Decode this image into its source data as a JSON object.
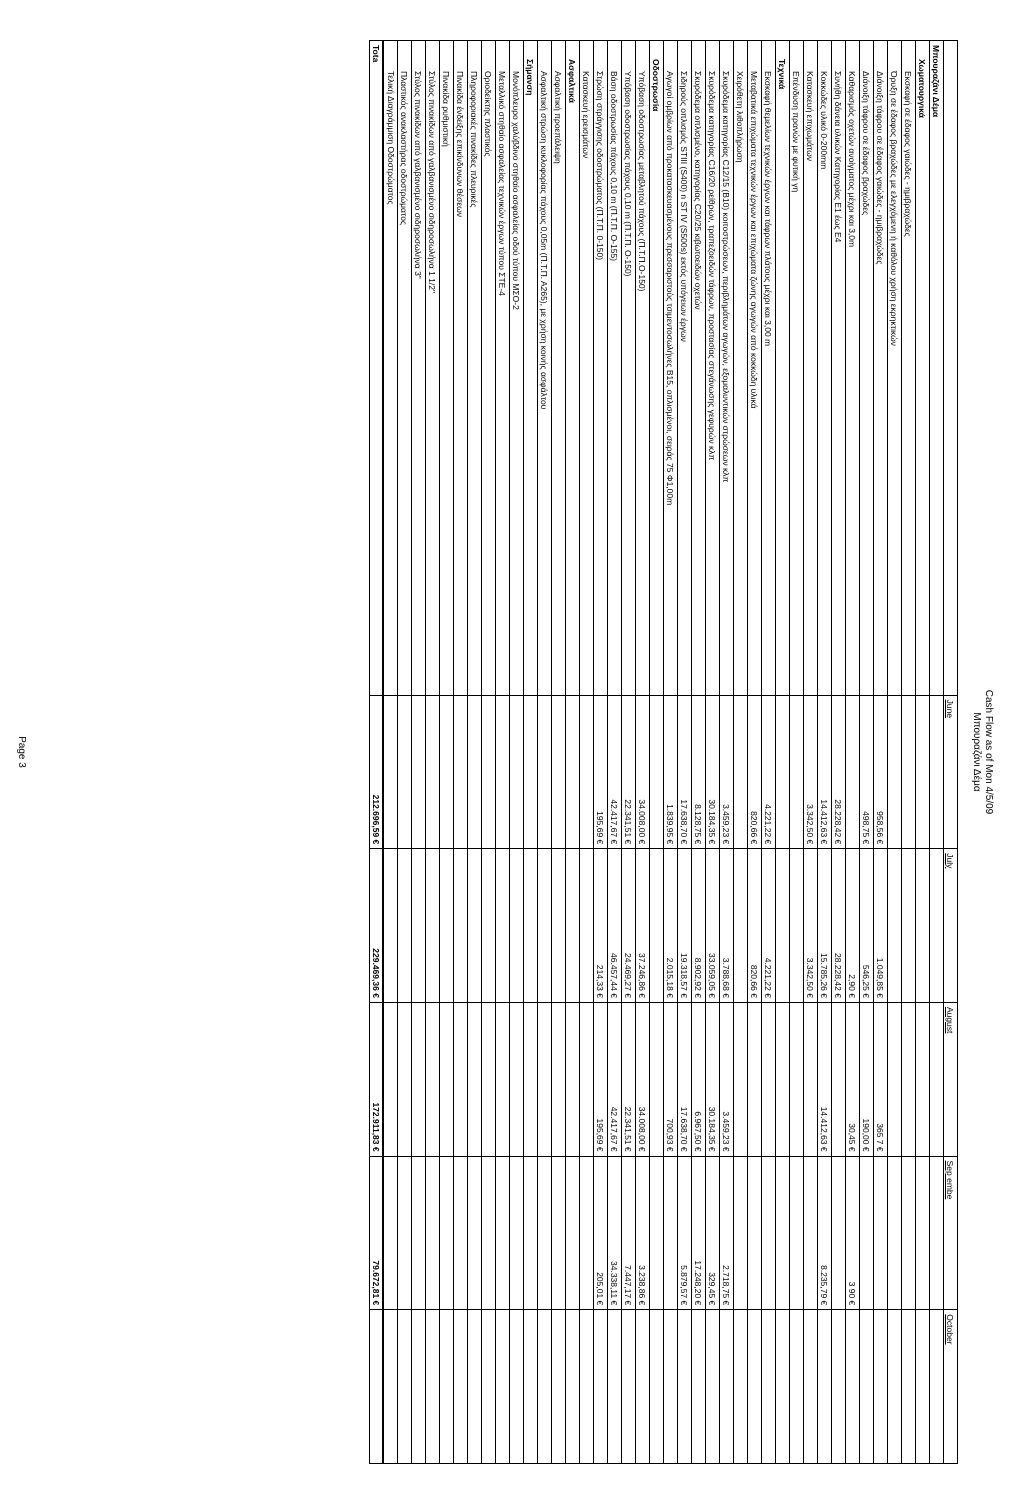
{
  "header": {
    "line1": "Cash Flow as of Mon 4/5/09",
    "line2": "Μπουραζάνι Δέμα"
  },
  "columns": [
    "June",
    "July",
    "August",
    "Sep embe",
    "October"
  ],
  "page_label": "Page 3",
  "total_label": "Tota",
  "totals": [
    "212.696,59 €",
    "229.469,36 €",
    "172.911,83 €",
    "79.672,81 €",
    ""
  ],
  "rows": [
    {
      "lvl": 0,
      "desc": "Μπουραζάνι Δέμα",
      "vals": [
        "",
        "",
        "",
        "",
        ""
      ]
    },
    {
      "lvl": 1,
      "desc": "Χωματουργικά",
      "vals": [
        "",
        "",
        "",
        "",
        ""
      ]
    },
    {
      "lvl": 2,
      "desc": "Εκσκαφή σε έδαφος γαιώδες - ημιβραχώδες",
      "vals": [
        "",
        "",
        "",
        "",
        ""
      ]
    },
    {
      "lvl": 2,
      "desc": "Όρυξη σε έδαφος βραχώδες με ελεγχόμενη ή καθόλου χρήση εκρηκτικών",
      "vals": [
        "",
        "",
        "",
        "",
        ""
      ]
    },
    {
      "lvl": 2,
      "desc": "Διάνοιξη τάφρου σε έδαφος γαιώδες - ημιβραχώδες",
      "vals": [
        "958,56 €",
        "1.049,85 €",
        "365  7 €",
        "",
        ""
      ]
    },
    {
      "lvl": 2,
      "desc": "Διάνοιξη τάφρου σε έδαφος βραχώδες",
      "vals": [
        "498,75 €",
        "546,25 €",
        "190,00 €",
        "",
        ""
      ]
    },
    {
      "lvl": 2,
      "desc": "Καθαρισμός οχετών ανοίγματος  μέχρι και 3,0m",
      "vals": [
        "",
        "2,90 €",
        "30,45 €",
        "3  90 €",
        ""
      ]
    },
    {
      "lvl": 2,
      "desc": "Συνήθη δάνεια υλικών  Κατηγορίας Ε1 έως Ε4",
      "vals": [
        "28.228,42 €",
        "28.228,42 €",
        "",
        "",
        ""
      ]
    },
    {
      "lvl": 2,
      "desc": "Κοκκώδες υλικό 0-200mm",
      "vals": [
        "14.412,63 €",
        "15.785,26 €",
        "14.412,63 €",
        "8.235,79 €",
        ""
      ]
    },
    {
      "lvl": 2,
      "desc": "Κατασκευή  επιχωμάτων",
      "vals": [
        "3.342,50 €",
        "3.342,50 €",
        "",
        "",
        ""
      ]
    },
    {
      "lvl": 2,
      "desc": "Επένδυση πρανών με φυτική γη",
      "vals": [
        "",
        "",
        "",
        "",
        ""
      ]
    },
    {
      "lvl": 1,
      "desc": "Τεχνικά",
      "vals": [
        "",
        "",
        "",
        "",
        ""
      ]
    },
    {
      "lvl": 2,
      "desc": "Εκσκαφή θεμελίων τεχνικών έργων και τάφρων πλάτους μέχρι και 3,00 m",
      "vals": [
        "4.221,22 €",
        "4.221,22 €",
        "",
        "",
        ""
      ]
    },
    {
      "lvl": 2,
      "desc": "Μεταβατικά επιχώματα τεχνικών έργων και επιχώματα ζώνης αγωγών από κοκκώδη υλικά",
      "vals": [
        "820,66 €",
        "820,66 €",
        "",
        "",
        ""
      ]
    },
    {
      "lvl": 2,
      "desc": "Χειρόθετη λιθοπλήρωση",
      "vals": [
        "",
        "",
        "",
        "",
        ""
      ]
    },
    {
      "lvl": 2,
      "desc": "Σκυρόδεμα κατηγορίας C12/15 (Β10) κοιτοστρώσεων, περιβλημάτων αγωγών, εξομαλυντικών στρώσεων κλπ",
      "vals": [
        "3.459,23 €",
        "3.788,68 €",
        "3.459,23 €",
        "2.718,75 €",
        ""
      ]
    },
    {
      "lvl": 2,
      "desc": "Σκυρόδεμα κατηγορίας C16/20 ρείθρων, τραπεζοειδών τάφρων, προστασίας στεγάνωσης γεφυρών κλπ",
      "vals": [
        "30.184,35 €",
        "33.059,05 €",
        "30.184,35 €",
        "329,45 €",
        ""
      ]
    },
    {
      "lvl": 2,
      "desc": "Σκυρόδεμα οπλισμένο, κατηγορίας C20/25 κιβωτοειδών οχετών",
      "vals": [
        "8.128,75 €",
        "8.902,92 €",
        "6.967,50 €",
        "17.248,20 €",
        ""
      ]
    },
    {
      "lvl": 2,
      "desc": "Σιδηρούς οπλισμός STIII (S400) n ST IV (S500s) εκτός υπόγειων έργων",
      "vals": [
        "17.638,70 €",
        "19.318,57 €",
        "17.638,70 €",
        "5.879,57 €",
        ""
      ]
    },
    {
      "lvl": 2,
      "desc": "Αγωγοί ομβρίων από προκατασκευασμένους πρεσσαριστούς τσιμεντοσωλήνες Β15, οπλισμένοι, σειράς 75 Φ1,00m",
      "vals": [
        "1.839,95 €",
        "2.015,18 €",
        "700,93 €",
        "",
        ""
      ]
    },
    {
      "lvl": 1,
      "desc": "Οδοστρωσία",
      "vals": [
        "",
        "",
        "",
        "",
        ""
      ]
    },
    {
      "lvl": 2,
      "desc": "Υπόβαση οδοστρωσίας μεταβλητού πάχους (Π.Τ.Π.Ο-150)",
      "vals": [
        "34.008,00 €",
        "37.246,86 €",
        "34.008,00 €",
        "3.238,86 €",
        ""
      ]
    },
    {
      "lvl": 2,
      "desc": "Υπόβαση οδοστρωσίας πάχους 0,10 m (Π.Τ.Π. Ο-150)",
      "vals": [
        "22.341,51 €",
        "24.469,27 €",
        "22.341,51 €",
        "7.447,17 €",
        ""
      ]
    },
    {
      "lvl": 2,
      "desc": "Βάση οδοστρωσίας πάχους 0,10 m (Π.Τ.Π. Ο-155)",
      "vals": [
        "42.417,67 €",
        "46.457,44 €",
        "42.417,67 €",
        "34.338,11 €",
        ""
      ]
    },
    {
      "lvl": 2,
      "desc": "Στρώση στράγγισης οδοστρώματος  (Π.Τ.Π. 0-150)",
      "vals": [
        "195,69 €",
        "214,33 €",
        "195,69 €",
        "205,01 €",
        ""
      ]
    },
    {
      "lvl": 2,
      "desc": "Κατασκευή ερεισμάτων",
      "vals": [
        "",
        "",
        "",
        "",
        ""
      ]
    },
    {
      "lvl": 1,
      "desc": "Ασφαλτικά",
      "vals": [
        "",
        "",
        "",
        "",
        ""
      ]
    },
    {
      "lvl": 2,
      "desc": "Ασφαλτική προεπάλειψη",
      "vals": [
        "",
        "",
        "",
        "",
        ""
      ]
    },
    {
      "lvl": 2,
      "desc": "Ασφαλτική στρώση κυκλοφορίας πάχους 0,05m (Π.Τ.Π. Α265), με χρήση κοινής ασφάλτου",
      "vals": [
        "",
        "",
        "",
        "",
        ""
      ]
    },
    {
      "lvl": 1,
      "desc": "Σήμανση",
      "vals": [
        "",
        "",
        "",
        "",
        ""
      ]
    },
    {
      "lvl": 2,
      "desc": "Μονόπλευρο χαλύβδινο στηθαίο ασφαλείας οδού τύπου ΜΣΟ-2",
      "vals": [
        "",
        "",
        "",
        "",
        ""
      ]
    },
    {
      "lvl": 2,
      "desc": "Μεταλλικό στηθαίο ασφαλείας τεχνικών έργων τύπου  ΣΤΕ-4",
      "vals": [
        "",
        "",
        "",
        "",
        ""
      ]
    },
    {
      "lvl": 2,
      "desc": "Οριοδείκτης πλαστικός",
      "vals": [
        "",
        "",
        "",
        "",
        ""
      ]
    },
    {
      "lvl": 2,
      "desc": "Πληροφοριακές πινακίδες πλευρικές",
      "vals": [
        "",
        "",
        "",
        "",
        ""
      ]
    },
    {
      "lvl": 2,
      "desc": "Πινακίδα ένδειξης επικίνδυνων θέσεων",
      "vals": [
        "",
        "",
        "",
        "",
        ""
      ]
    },
    {
      "lvl": 2,
      "desc": "Πινακίδα ρυθμιστική",
      "vals": [
        "",
        "",
        "",
        "",
        ""
      ]
    },
    {
      "lvl": 2,
      "desc": "Στύλος πινακίδων από γαλβανισμένο σιδηροσωλήνα 1 1/2\"",
      "vals": [
        "",
        "",
        "",
        "",
        ""
      ]
    },
    {
      "lvl": 2,
      "desc": "Στύλος πινακίδων από γαλβανισμένο σιδηροσωλήνα 3\"",
      "vals": [
        "",
        "",
        "",
        "",
        ""
      ]
    },
    {
      "lvl": 2,
      "desc": "Πλαστικός ανακλαστήρας οδοστρώματος",
      "vals": [
        "",
        "",
        "",
        "",
        ""
      ]
    },
    {
      "lvl": 2,
      "desc": "Τελική Διαγράμμιση Οδοστρώματος",
      "vals": [
        "",
        "",
        "",
        "",
        ""
      ]
    }
  ]
}
